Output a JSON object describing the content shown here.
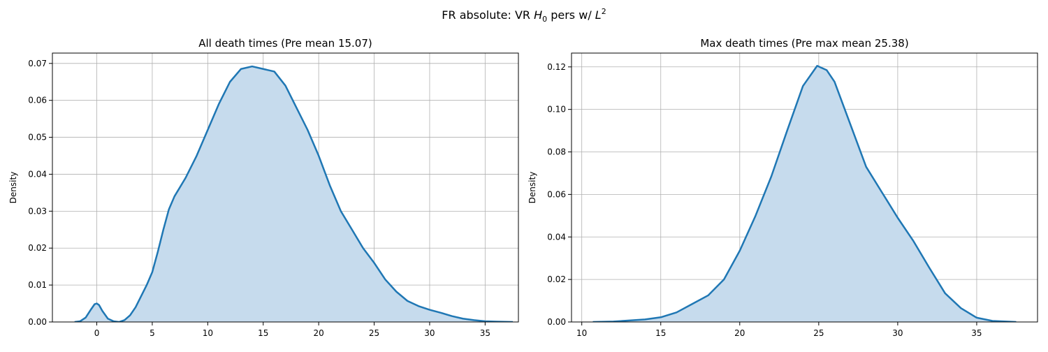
{
  "figure": {
    "suptitle_prefix": "FR absolute: VR ",
    "suptitle_symbol": "H",
    "suptitle_subscript": "0",
    "suptitle_mid": " pers w/ ",
    "suptitle_symbol2": "L",
    "suptitle_superscript": "2"
  },
  "colors": {
    "line": "#1f77b4",
    "fill": "#c6dbed",
    "grid": "#b0b0b0",
    "axis": "#000000"
  },
  "chart_data": [
    {
      "type": "area",
      "title": "All death times (Pre mean 15.07)",
      "xlabel": "",
      "ylabel": "Density",
      "xlim": [
        -4,
        38
      ],
      "ylim": [
        0,
        0.0728
      ],
      "xticks": [
        0,
        5,
        10,
        15,
        20,
        25,
        30,
        35
      ],
      "yticks": [
        0.0,
        0.01,
        0.02,
        0.03,
        0.04,
        0.05,
        0.06,
        0.07
      ],
      "ytick_decimals": 2,
      "grid": true,
      "series": [
        {
          "x": [
            -2,
            -1.5,
            -1,
            -0.5,
            -0.2,
            0,
            0.2,
            0.5,
            1,
            1.5,
            2,
            2.5,
            3,
            3.5,
            4,
            4.5,
            5,
            5.5,
            6,
            6.5,
            7,
            8,
            9,
            10,
            11,
            12,
            13,
            14,
            15,
            16,
            17,
            18,
            19,
            20,
            21,
            22,
            23,
            24,
            25,
            26,
            27,
            28,
            29,
            30,
            31,
            32,
            33,
            34,
            35,
            36,
            37.5
          ],
          "y": [
            0.0,
            0.0002,
            0.0012,
            0.0035,
            0.0048,
            0.005,
            0.0046,
            0.003,
            0.0009,
            0.0002,
            0.0,
            0.0005,
            0.0018,
            0.004,
            0.007,
            0.01,
            0.0135,
            0.019,
            0.025,
            0.0305,
            0.034,
            0.039,
            0.045,
            0.052,
            0.059,
            0.065,
            0.0685,
            0.0692,
            0.0685,
            0.0678,
            0.064,
            0.058,
            0.052,
            0.045,
            0.037,
            0.03,
            0.025,
            0.02,
            0.016,
            0.0115,
            0.0082,
            0.0057,
            0.0043,
            0.0033,
            0.0025,
            0.0016,
            0.0009,
            0.0005,
            0.0002,
            0.0001,
            0.0
          ]
        }
      ]
    },
    {
      "type": "area",
      "title": "Max death times (Pre max mean 25.38)",
      "xlabel": "",
      "ylabel": "Density",
      "xlim": [
        9.35,
        38.85
      ],
      "ylim": [
        0,
        0.1265
      ],
      "xticks": [
        10,
        15,
        20,
        25,
        30,
        35
      ],
      "yticks": [
        0.0,
        0.02,
        0.04,
        0.06,
        0.08,
        0.1,
        0.12
      ],
      "ytick_decimals": 2,
      "grid": true,
      "series": [
        {
          "x": [
            10.7,
            12,
            13,
            14,
            15,
            16,
            17,
            18,
            19,
            20,
            21,
            22,
            23,
            24,
            24.9,
            25.5,
            26,
            27,
            28,
            29,
            30,
            31,
            32,
            33,
            34,
            35,
            36,
            37.5
          ],
          "y": [
            0.0,
            0.0002,
            0.0007,
            0.0012,
            0.0022,
            0.0045,
            0.0085,
            0.0125,
            0.02,
            0.0335,
            0.05,
            0.0685,
            0.09,
            0.111,
            0.1205,
            0.1185,
            0.113,
            0.093,
            0.073,
            0.061,
            0.049,
            0.038,
            0.0255,
            0.0135,
            0.0065,
            0.002,
            0.0005,
            0.0
          ]
        }
      ]
    }
  ]
}
